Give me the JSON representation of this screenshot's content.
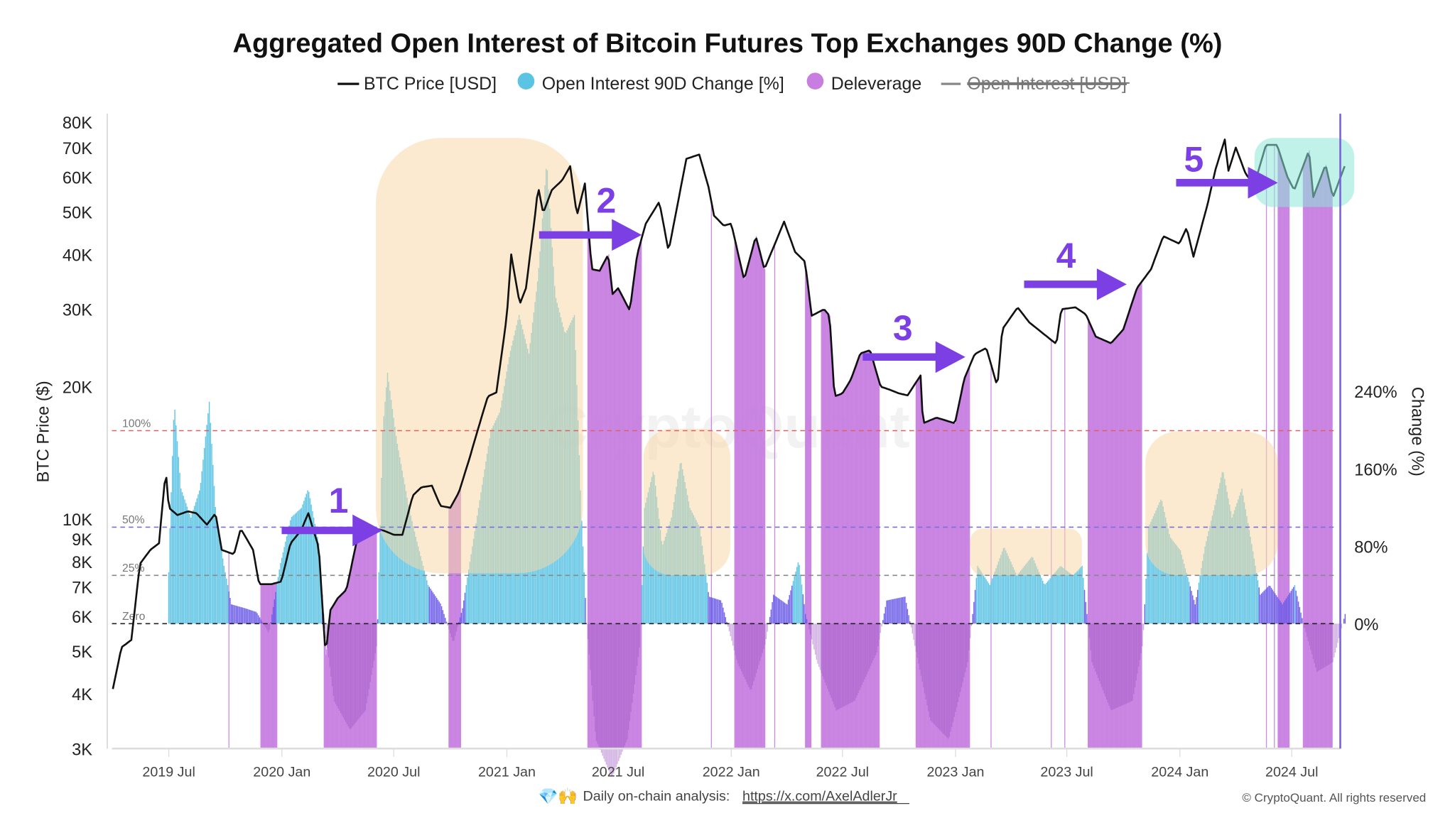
{
  "chart_data": {
    "type": "bar+line",
    "title": "Aggregated Open Interest of Bitcoin Futures Top Exchanges 90D Change (%)",
    "legend": {
      "placement": "top-center",
      "items": [
        {
          "label": "BTC Price [USD]",
          "color": "#111111",
          "marker": "line",
          "hidden": false
        },
        {
          "label": "Open Interest 90D Change [%]",
          "color": "#5bc3e3",
          "marker": "circle",
          "hidden": false
        },
        {
          "label": "Deleverage",
          "color": "#c77ee0",
          "marker": "circle",
          "hidden": false
        },
        {
          "label": "Open Interest [USD]",
          "color": "#888888",
          "marker": "line",
          "hidden": true
        }
      ]
    },
    "ylabel_left": "BTC Price ($)",
    "ylabel_right": "Change (%)",
    "y_left_scale": "log",
    "y_left_range": [
      3000,
      80000
    ],
    "y_left_ticks": [
      "80K",
      "70K",
      "60K",
      "50K",
      "40K",
      "30K",
      "20K",
      "10K",
      "9K",
      "8K",
      "7K",
      "6K",
      "5K",
      "4K",
      "3K"
    ],
    "y_left_tick_values": [
      80000,
      70000,
      60000,
      50000,
      40000,
      30000,
      20000,
      10000,
      9000,
      8000,
      7000,
      6000,
      5000,
      4000,
      3000
    ],
    "y_right_ticks": [
      "240%",
      "160%",
      "80%",
      "0%"
    ],
    "y_right_tick_values": [
      240,
      160,
      80,
      0
    ],
    "x_range": [
      "2019-04-01",
      "2024-09-25"
    ],
    "x_ticks": [
      {
        "label": "2019 Jul",
        "date": "2019-07-01"
      },
      {
        "label": "2020 Jan",
        "date": "2020-01-01"
      },
      {
        "label": "2020 Jul",
        "date": "2020-07-01"
      },
      {
        "label": "2021 Jan",
        "date": "2021-01-01"
      },
      {
        "label": "2021 Jul",
        "date": "2021-07-01"
      },
      {
        "label": "2022 Jan",
        "date": "2022-01-01"
      },
      {
        "label": "2022 Jul",
        "date": "2022-07-01"
      },
      {
        "label": "2023 Jan",
        "date": "2023-01-01"
      },
      {
        "label": "2023 Jul",
        "date": "2023-07-01"
      },
      {
        "label": "2024 Jan",
        "date": "2024-01-01"
      },
      {
        "label": "2024 Jul",
        "date": "2024-07-01"
      }
    ],
    "reference_lines": [
      {
        "label": "100%",
        "value": 100,
        "color": "#e06060"
      },
      {
        "label": "50%",
        "value": 50,
        "color": "#7b6fe0"
      },
      {
        "label": "25%",
        "value": 25,
        "color": "#888888"
      },
      {
        "label": "Zero",
        "value": 0,
        "color": "#222222"
      }
    ],
    "grid": false,
    "series_price": [
      [
        "2019-04-01",
        4100
      ],
      [
        "2019-04-15",
        5100
      ],
      [
        "2019-05-01",
        5300
      ],
      [
        "2019-05-15",
        7900
      ],
      [
        "2019-06-01",
        8500
      ],
      [
        "2019-06-15",
        8800
      ],
      [
        "2019-06-26",
        12900
      ],
      [
        "2019-07-01",
        10600
      ],
      [
        "2019-07-15",
        10200
      ],
      [
        "2019-08-01",
        10400
      ],
      [
        "2019-08-15",
        10300
      ],
      [
        "2019-09-01",
        9700
      ],
      [
        "2019-09-15",
        10300
      ],
      [
        "2019-09-25",
        8500
      ],
      [
        "2019-10-15",
        8300
      ],
      [
        "2019-10-26",
        9500
      ],
      [
        "2019-11-15",
        8500
      ],
      [
        "2019-11-25",
        7100
      ],
      [
        "2019-12-15",
        7100
      ],
      [
        "2019-12-31",
        7200
      ],
      [
        "2020-01-15",
        8800
      ],
      [
        "2020-02-01",
        9400
      ],
      [
        "2020-02-13",
        10300
      ],
      [
        "2020-03-01",
        8600
      ],
      [
        "2020-03-12",
        4900
      ],
      [
        "2020-03-20",
        6200
      ],
      [
        "2020-04-01",
        6600
      ],
      [
        "2020-04-15",
        6900
      ],
      [
        "2020-05-01",
        8800
      ],
      [
        "2020-05-15",
        9700
      ],
      [
        "2020-06-01",
        9500
      ],
      [
        "2020-06-15",
        9400
      ],
      [
        "2020-07-01",
        9200
      ],
      [
        "2020-07-15",
        9200
      ],
      [
        "2020-08-01",
        11300
      ],
      [
        "2020-08-15",
        11800
      ],
      [
        "2020-09-01",
        11900
      ],
      [
        "2020-09-15",
        10700
      ],
      [
        "2020-10-01",
        10600
      ],
      [
        "2020-10-15",
        11500
      ],
      [
        "2020-11-01",
        13700
      ],
      [
        "2020-11-15",
        16000
      ],
      [
        "2020-12-01",
        19000
      ],
      [
        "2020-12-15",
        19400
      ],
      [
        "2021-01-01",
        29000
      ],
      [
        "2021-01-08",
        40000
      ],
      [
        "2021-01-22",
        30800
      ],
      [
        "2021-02-01",
        33500
      ],
      [
        "2021-02-15",
        48000
      ],
      [
        "2021-02-21",
        57000
      ],
      [
        "2021-03-01",
        49600
      ],
      [
        "2021-03-15",
        56000
      ],
      [
        "2021-04-01",
        59000
      ],
      [
        "2021-04-14",
        63500
      ],
      [
        "2021-04-25",
        49000
      ],
      [
        "2021-05-08",
        58000
      ],
      [
        "2021-05-19",
        37000
      ],
      [
        "2021-06-01",
        36700
      ],
      [
        "2021-06-15",
        40000
      ],
      [
        "2021-06-22",
        32500
      ],
      [
        "2021-07-01",
        33500
      ],
      [
        "2021-07-20",
        29800
      ],
      [
        "2021-08-01",
        40000
      ],
      [
        "2021-08-15",
        47000
      ],
      [
        "2021-09-06",
        52700
      ],
      [
        "2021-09-21",
        40700
      ],
      [
        "2021-10-01",
        48000
      ],
      [
        "2021-10-20",
        66000
      ],
      [
        "2021-11-10",
        67500
      ],
      [
        "2021-11-25",
        57000
      ],
      [
        "2021-12-04",
        49000
      ],
      [
        "2021-12-20",
        46500
      ],
      [
        "2022-01-01",
        47000
      ],
      [
        "2022-01-22",
        35000
      ],
      [
        "2022-02-10",
        44000
      ],
      [
        "2022-02-24",
        37000
      ],
      [
        "2022-03-28",
        47500
      ],
      [
        "2022-04-15",
        40500
      ],
      [
        "2022-05-01",
        38500
      ],
      [
        "2022-05-12",
        29000
      ],
      [
        "2022-06-01",
        30000
      ],
      [
        "2022-06-10",
        29000
      ],
      [
        "2022-06-18",
        19000
      ],
      [
        "2022-07-01",
        19300
      ],
      [
        "2022-07-15",
        20800
      ],
      [
        "2022-07-30",
        23800
      ],
      [
        "2022-08-15",
        24200
      ],
      [
        "2022-09-01",
        20000
      ],
      [
        "2022-09-15",
        19700
      ],
      [
        "2022-10-01",
        19300
      ],
      [
        "2022-10-15",
        19100
      ],
      [
        "2022-11-05",
        21200
      ],
      [
        "2022-11-09",
        16500
      ],
      [
        "2022-12-01",
        17000
      ],
      [
        "2022-12-31",
        16500
      ],
      [
        "2023-01-15",
        20800
      ],
      [
        "2023-02-01",
        23700
      ],
      [
        "2023-02-20",
        24500
      ],
      [
        "2023-03-10",
        20000
      ],
      [
        "2023-03-18",
        27000
      ],
      [
        "2023-04-12",
        30300
      ],
      [
        "2023-05-01",
        28000
      ],
      [
        "2023-05-15",
        27000
      ],
      [
        "2023-06-14",
        25000
      ],
      [
        "2023-06-22",
        30000
      ],
      [
        "2023-07-15",
        30300
      ],
      [
        "2023-08-01",
        29200
      ],
      [
        "2023-08-17",
        26000
      ],
      [
        "2023-09-11",
        25100
      ],
      [
        "2023-10-01",
        27000
      ],
      [
        "2023-10-23",
        33500
      ],
      [
        "2023-11-15",
        37000
      ],
      [
        "2023-12-05",
        44000
      ],
      [
        "2023-12-31",
        42300
      ],
      [
        "2024-01-12",
        46000
      ],
      [
        "2024-01-23",
        39500
      ],
      [
        "2024-02-15",
        52000
      ],
      [
        "2024-02-28",
        62500
      ],
      [
        "2024-03-14",
        73000
      ],
      [
        "2024-03-20",
        62000
      ],
      [
        "2024-04-01",
        70000
      ],
      [
        "2024-04-17",
        61000
      ],
      [
        "2024-05-01",
        57500
      ],
      [
        "2024-05-20",
        71000
      ],
      [
        "2024-06-07",
        71000
      ],
      [
        "2024-06-24",
        60000
      ],
      [
        "2024-07-05",
        56000
      ],
      [
        "2024-07-29",
        69000
      ],
      [
        "2024-08-05",
        54000
      ],
      [
        "2024-08-25",
        64000
      ],
      [
        "2024-09-06",
        53900
      ],
      [
        "2024-09-25",
        63500
      ]
    ],
    "series_oi_change": [
      [
        "2019-06-28",
        0
      ],
      [
        "2019-07-01",
        40
      ],
      [
        "2019-07-09",
        115
      ],
      [
        "2019-07-20",
        70
      ],
      [
        "2019-08-05",
        55
      ],
      [
        "2019-08-20",
        70
      ],
      [
        "2019-09-04",
        115
      ],
      [
        "2019-09-15",
        55
      ],
      [
        "2019-09-28",
        30
      ],
      [
        "2019-10-10",
        10
      ],
      [
        "2019-11-01",
        8
      ],
      [
        "2019-11-20",
        6
      ],
      [
        "2019-12-10",
        -5
      ],
      [
        "2019-12-28",
        30
      ],
      [
        "2020-01-15",
        55
      ],
      [
        "2020-02-01",
        60
      ],
      [
        "2020-02-12",
        70
      ],
      [
        "2020-03-01",
        40
      ],
      [
        "2020-03-09",
        0
      ],
      [
        "2020-03-25",
        -40
      ],
      [
        "2020-04-20",
        -55
      ],
      [
        "2020-05-15",
        -45
      ],
      [
        "2020-06-03",
        -10
      ],
      [
        "2020-06-12",
        100
      ],
      [
        "2020-06-20",
        130
      ],
      [
        "2020-07-05",
        95
      ],
      [
        "2020-07-25",
        60
      ],
      [
        "2020-08-05",
        45
      ],
      [
        "2020-08-25",
        20
      ],
      [
        "2020-09-15",
        10
      ],
      [
        "2020-10-05",
        -10
      ],
      [
        "2020-10-20",
        8
      ],
      [
        "2020-11-05",
        40
      ],
      [
        "2020-11-20",
        70
      ],
      [
        "2020-12-05",
        100
      ],
      [
        "2020-12-20",
        110
      ],
      [
        "2021-01-05",
        140
      ],
      [
        "2021-01-20",
        160
      ],
      [
        "2021-02-05",
        140
      ],
      [
        "2021-02-20",
        180
      ],
      [
        "2021-03-06",
        240
      ],
      [
        "2021-03-20",
        170
      ],
      [
        "2021-04-05",
        150
      ],
      [
        "2021-04-20",
        160
      ],
      [
        "2021-05-01",
        60
      ],
      [
        "2021-05-10",
        0
      ],
      [
        "2021-05-25",
        -60
      ],
      [
        "2021-06-20",
        -80
      ],
      [
        "2021-07-15",
        -60
      ],
      [
        "2021-08-05",
        -10
      ],
      [
        "2021-08-12",
        60
      ],
      [
        "2021-08-27",
        80
      ],
      [
        "2021-09-10",
        40
      ],
      [
        "2021-09-25",
        55
      ],
      [
        "2021-10-10",
        85
      ],
      [
        "2021-10-25",
        60
      ],
      [
        "2021-11-10",
        50
      ],
      [
        "2021-11-25",
        14
      ],
      [
        "2021-12-15",
        12
      ],
      [
        "2022-01-10",
        -20
      ],
      [
        "2022-02-01",
        -35
      ],
      [
        "2022-02-25",
        -10
      ],
      [
        "2022-03-10",
        15
      ],
      [
        "2022-04-01",
        10
      ],
      [
        "2022-04-20",
        33
      ],
      [
        "2022-05-01",
        5
      ],
      [
        "2022-05-20",
        -20
      ],
      [
        "2022-06-20",
        -45
      ],
      [
        "2022-07-20",
        -40
      ],
      [
        "2022-08-25",
        -15
      ],
      [
        "2022-09-10",
        12
      ],
      [
        "2022-10-10",
        14
      ],
      [
        "2022-10-25",
        -10
      ],
      [
        "2022-11-20",
        -50
      ],
      [
        "2022-12-20",
        -60
      ],
      [
        "2023-01-20",
        -20
      ],
      [
        "2023-02-05",
        30
      ],
      [
        "2023-02-25",
        20
      ],
      [
        "2023-03-20",
        40
      ],
      [
        "2023-04-10",
        25
      ],
      [
        "2023-05-05",
        35
      ],
      [
        "2023-05-25",
        20
      ],
      [
        "2023-06-20",
        30
      ],
      [
        "2023-07-10",
        25
      ],
      [
        "2023-07-25",
        30
      ],
      [
        "2023-08-10",
        -20
      ],
      [
        "2023-09-10",
        -45
      ],
      [
        "2023-10-15",
        -40
      ],
      [
        "2023-11-01",
        -10
      ],
      [
        "2023-11-10",
        50
      ],
      [
        "2023-12-01",
        65
      ],
      [
        "2023-12-15",
        45
      ],
      [
        "2024-01-01",
        38
      ],
      [
        "2024-01-25",
        10
      ],
      [
        "2024-02-10",
        40
      ],
      [
        "2024-02-25",
        60
      ],
      [
        "2024-03-10",
        80
      ],
      [
        "2024-03-25",
        55
      ],
      [
        "2024-04-10",
        70
      ],
      [
        "2024-04-24",
        45
      ],
      [
        "2024-05-10",
        15
      ],
      [
        "2024-05-25",
        20
      ],
      [
        "2024-06-15",
        10
      ],
      [
        "2024-07-05",
        20
      ],
      [
        "2024-07-19",
        0
      ],
      [
        "2024-08-10",
        -25
      ],
      [
        "2024-09-05",
        -20
      ],
      [
        "2024-09-25",
        5
      ]
    ],
    "deleverage_periods": [
      [
        "2019-10-06",
        "2019-10-07"
      ],
      [
        "2019-11-27",
        "2019-12-24"
      ],
      [
        "2020-03-09",
        "2020-06-03"
      ],
      [
        "2020-09-28",
        "2020-10-18"
      ],
      [
        "2021-05-12",
        "2021-08-08"
      ],
      [
        "2021-11-29",
        "2021-11-30"
      ],
      [
        "2022-01-06",
        "2022-02-25"
      ],
      [
        "2022-03-12",
        "2022-03-13"
      ],
      [
        "2022-05-01",
        "2022-05-11"
      ],
      [
        "2022-05-27",
        "2022-08-30"
      ],
      [
        "2022-10-28",
        "2023-01-24"
      ],
      [
        "2023-02-27",
        "2023-02-28"
      ],
      [
        "2023-06-05",
        "2023-06-06"
      ],
      [
        "2023-06-27",
        "2023-06-28"
      ],
      [
        "2023-08-04",
        "2023-10-31"
      ],
      [
        "2024-05-20",
        "2024-05-21"
      ],
      [
        "2024-06-02",
        "2024-06-03"
      ],
      [
        "2024-06-08",
        "2024-06-27"
      ],
      [
        "2024-07-19",
        "2024-09-05"
      ]
    ],
    "annotations": [
      {
        "label": "1",
        "type": "arrow"
      },
      {
        "label": "2",
        "type": "arrow"
      },
      {
        "label": "3",
        "type": "arrow"
      },
      {
        "label": "4",
        "type": "arrow"
      },
      {
        "label": "5",
        "type": "arrow"
      }
    ]
  },
  "watermark": "CryptoQuant",
  "footer": {
    "emoji": "💎🙌",
    "text": "Daily on-chain analysis: ",
    "link": "https://x.com/AxelAdlerJr",
    "copyright": "© CryptoQuant. All rights reserved"
  },
  "colors": {
    "price": "#111111",
    "oi_high": "#5bc3e3",
    "oi_low": "#6b5ce8",
    "deleverage": "#c77ee0",
    "arrow": "#7b3fe4",
    "highlight": "#f7d9a8",
    "highlight_cyan": "#8ee8d8"
  }
}
